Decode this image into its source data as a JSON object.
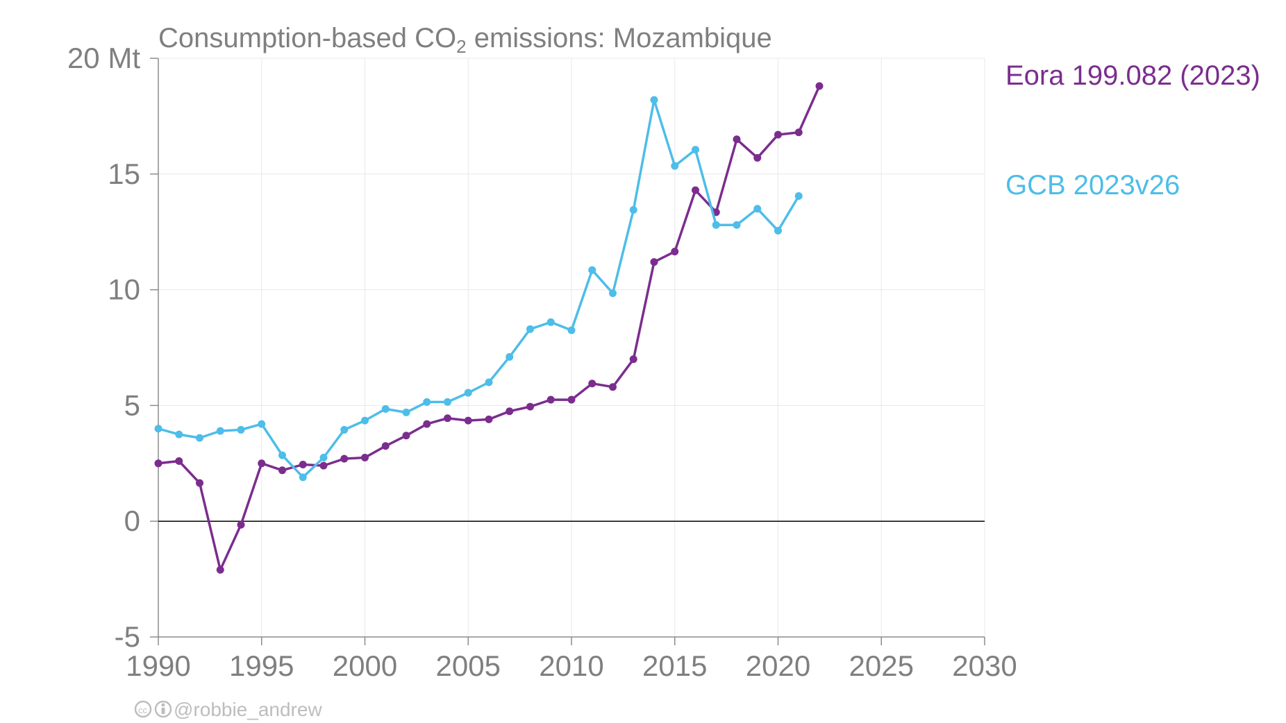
{
  "chart_data": {
    "type": "line",
    "title": {
      "prefix": "Consumption-based CO",
      "subscript": "2",
      "suffix": " emissions: Mozambique"
    },
    "xlabel": "",
    "ylabel": "",
    "y_unit": "Mt",
    "xlim": [
      1990,
      2030
    ],
    "ylim": [
      -5,
      20
    ],
    "x_ticks": [
      1990,
      1995,
      2000,
      2005,
      2010,
      2015,
      2020,
      2025,
      2030
    ],
    "y_ticks": [
      -5,
      0,
      5,
      10,
      15,
      20
    ],
    "grid": true,
    "series": [
      {
        "name": "Eora 199.082 (2023)",
        "color": "#7b2d8e",
        "x": [
          1990,
          1991,
          1992,
          1993,
          1994,
          1995,
          1996,
          1997,
          1998,
          1999,
          2000,
          2001,
          2002,
          2003,
          2004,
          2005,
          2006,
          2007,
          2008,
          2009,
          2010,
          2011,
          2012,
          2013,
          2014,
          2015,
          2016,
          2017,
          2018,
          2019,
          2020,
          2021,
          2022
        ],
        "values": [
          2.5,
          2.6,
          1.65,
          -2.1,
          -0.15,
          2.5,
          2.2,
          2.45,
          2.4,
          2.7,
          2.75,
          3.25,
          3.7,
          4.2,
          4.45,
          4.35,
          4.4,
          4.75,
          4.95,
          5.25,
          5.25,
          5.95,
          5.8,
          7.0,
          11.2,
          11.65,
          14.3,
          13.35,
          16.5,
          15.7,
          16.7,
          16.8,
          18.8
        ]
      },
      {
        "name": "GCB 2023v26",
        "color": "#4dbde9",
        "x": [
          1990,
          1991,
          1992,
          1993,
          1994,
          1995,
          1996,
          1997,
          1998,
          1999,
          2000,
          2001,
          2002,
          2003,
          2004,
          2005,
          2006,
          2007,
          2008,
          2009,
          2010,
          2011,
          2012,
          2013,
          2014,
          2015,
          2016,
          2017,
          2018,
          2019,
          2020,
          2021
        ],
        "values": [
          4.0,
          3.75,
          3.6,
          3.9,
          3.95,
          4.2,
          2.85,
          1.9,
          2.75,
          3.95,
          4.35,
          4.85,
          4.7,
          5.15,
          5.15,
          5.55,
          6.0,
          7.1,
          8.3,
          8.6,
          8.25,
          10.85,
          9.85,
          13.45,
          18.2,
          15.35,
          16.05,
          12.8,
          12.8,
          13.5,
          12.55,
          14.05
        ]
      }
    ],
    "credit": "@robbie_andrew"
  }
}
